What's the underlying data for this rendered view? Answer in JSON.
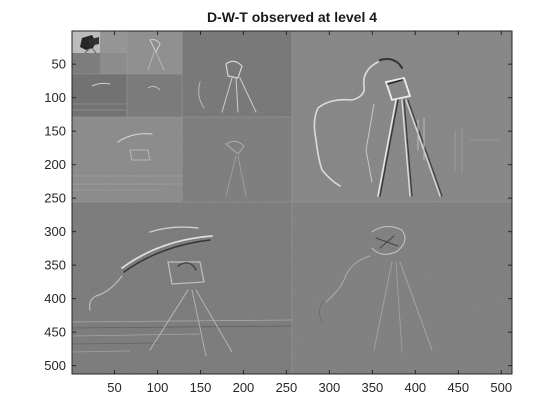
{
  "figure": {
    "title": "D-W-T observed at level 4"
  },
  "image": {
    "description": "Wavelet decomposition pyramid of cameraman image",
    "levels": 4,
    "x_range": [
      1,
      512
    ],
    "y_range": [
      1,
      512
    ]
  },
  "axes": {
    "x_ticks": [
      "50",
      "100",
      "150",
      "200",
      "250",
      "300",
      "350",
      "400",
      "450",
      "500"
    ],
    "x_tick_values": [
      50,
      100,
      150,
      200,
      250,
      300,
      350,
      400,
      450,
      500
    ],
    "y_ticks": [
      "50",
      "100",
      "150",
      "200",
      "250",
      "300",
      "350",
      "400",
      "450",
      "500"
    ],
    "y_tick_values": [
      50,
      100,
      150,
      200,
      250,
      300,
      350,
      400,
      450,
      500
    ]
  },
  "colors": {
    "axis": "#262626",
    "background_gray": "#808080",
    "edge_light": "#d8d8d8",
    "edge_dark": "#3a3a3a"
  }
}
